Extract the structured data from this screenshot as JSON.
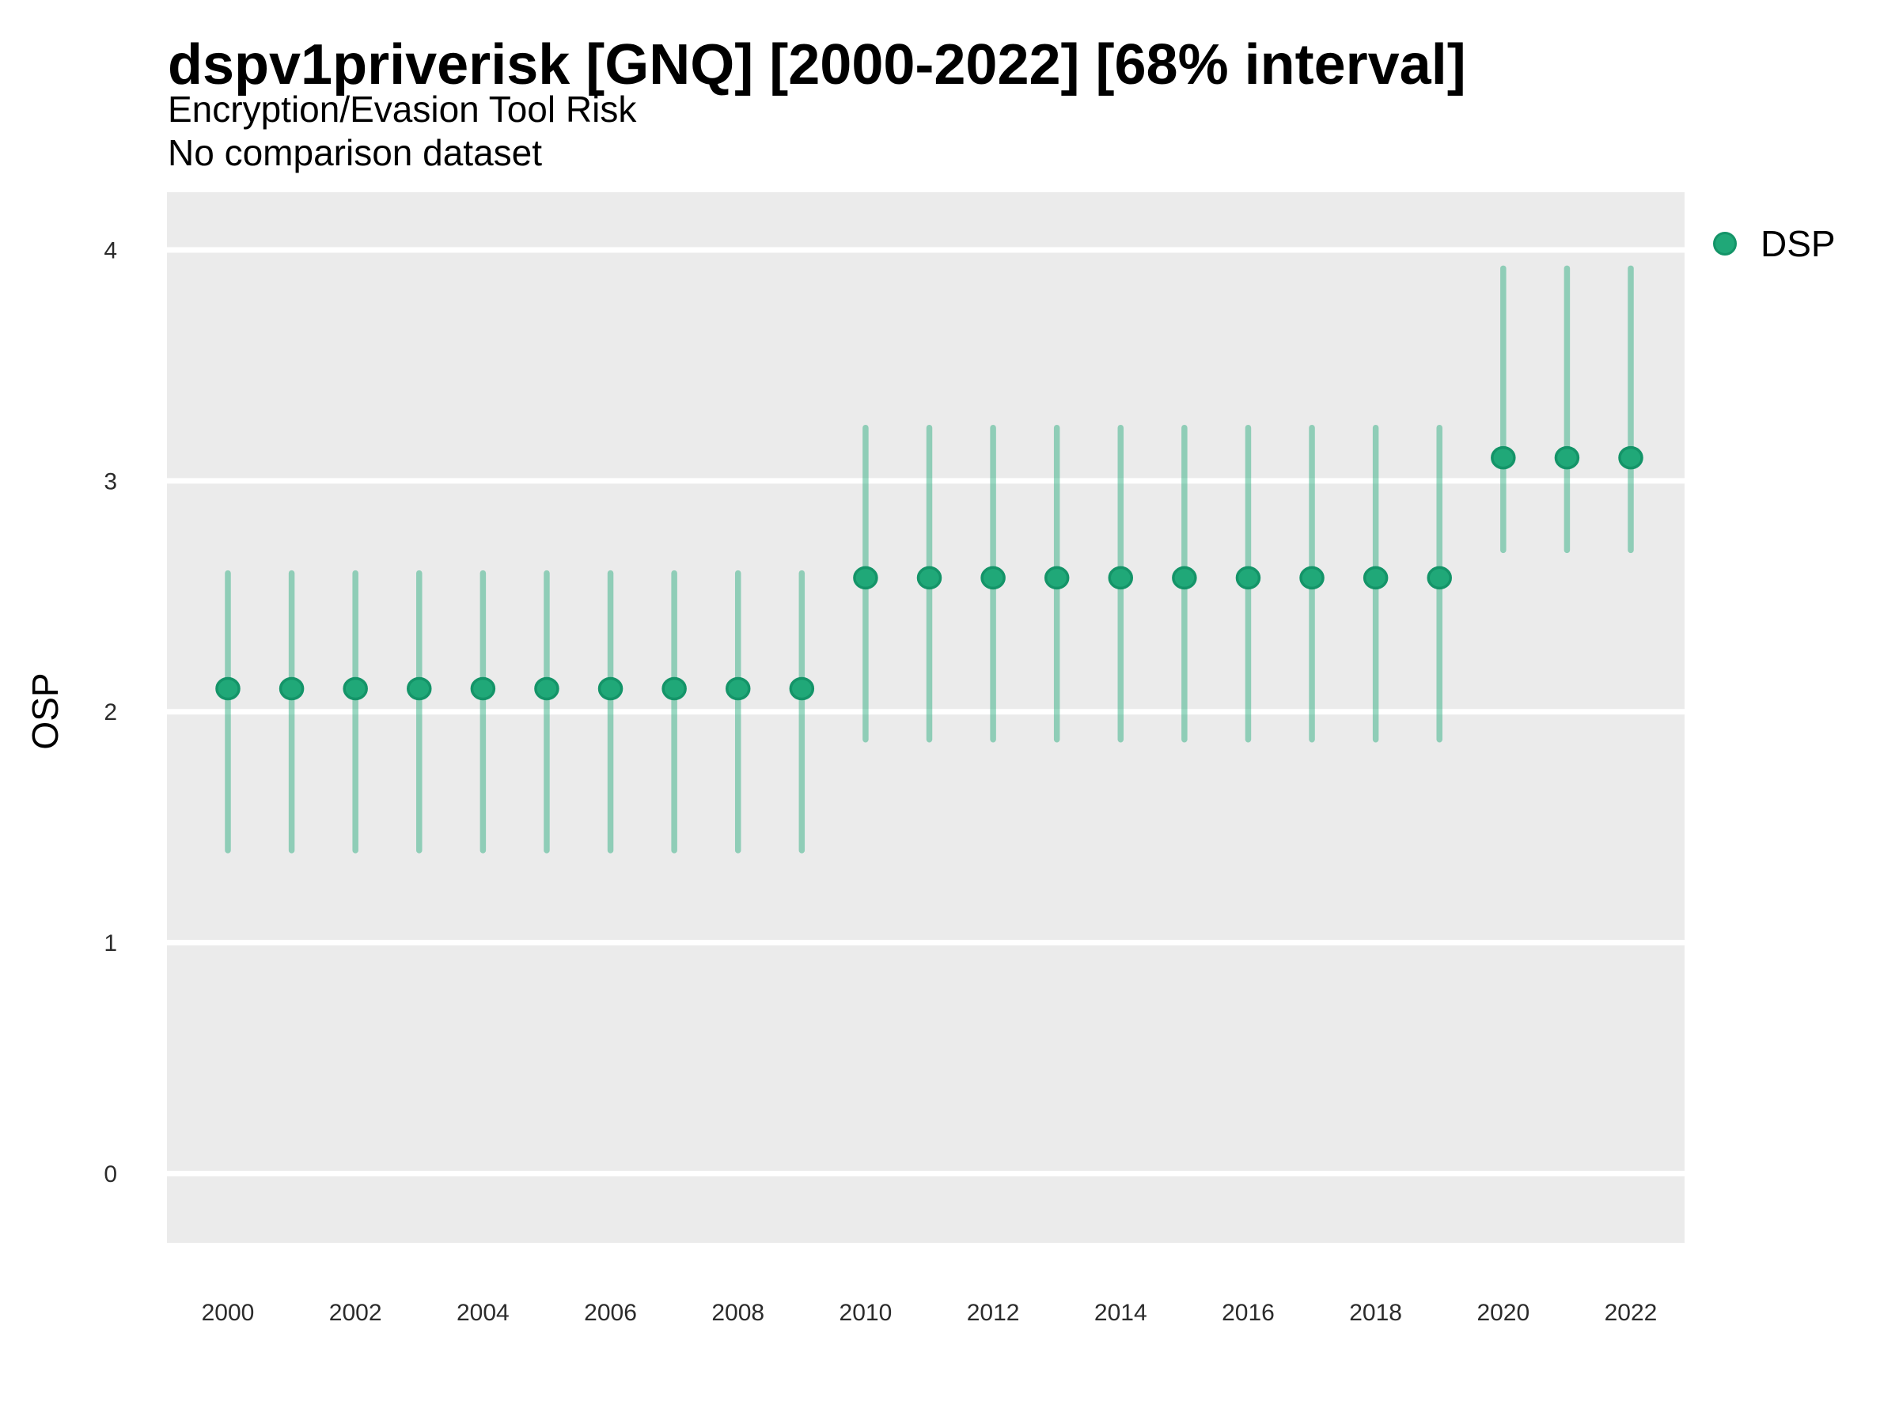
{
  "header": {
    "title": "dspv1priverisk [GNQ] [2000-2022] [68% interval]",
    "subtitle": "Encryption/Evasion Tool Risk",
    "note": "No comparison dataset"
  },
  "legend": {
    "position": "right-top",
    "items": [
      {
        "label": "DSP",
        "color": "#20A878",
        "stroke": "#149468"
      }
    ]
  },
  "chart_data": {
    "type": "pointrange",
    "title": "dspv1priverisk [GNQ] [2000-2022] [68% interval]",
    "xlabel": "",
    "ylabel": "OSP",
    "interval": "68%",
    "grid": "horizontal-only",
    "x": [
      2000,
      2001,
      2002,
      2003,
      2004,
      2005,
      2006,
      2007,
      2008,
      2009,
      2010,
      2011,
      2012,
      2013,
      2014,
      2015,
      2016,
      2017,
      2018,
      2019,
      2020,
      2021,
      2022
    ],
    "series": [
      {
        "name": "DSP",
        "values": [
          2.1,
          2.1,
          2.1,
          2.1,
          2.1,
          2.1,
          2.1,
          2.1,
          2.1,
          2.1,
          2.58,
          2.58,
          2.58,
          2.58,
          2.58,
          2.58,
          2.58,
          2.58,
          2.58,
          2.58,
          3.1,
          3.1,
          3.1
        ],
        "lower": [
          1.4,
          1.4,
          1.4,
          1.4,
          1.4,
          1.4,
          1.4,
          1.4,
          1.4,
          1.4,
          1.88,
          1.88,
          1.88,
          1.88,
          1.88,
          1.88,
          1.88,
          1.88,
          1.88,
          1.88,
          2.7,
          2.7,
          2.7
        ],
        "upper": [
          2.6,
          2.6,
          2.6,
          2.6,
          2.6,
          2.6,
          2.6,
          2.6,
          2.6,
          2.6,
          3.23,
          3.23,
          3.23,
          3.23,
          3.23,
          3.23,
          3.23,
          3.23,
          3.23,
          3.23,
          3.92,
          3.92,
          3.92
        ]
      }
    ],
    "xticks": [
      2000,
      2002,
      2004,
      2006,
      2008,
      2010,
      2012,
      2014,
      2016,
      2018,
      2020,
      2022
    ],
    "yticks": [
      0,
      1,
      2,
      3,
      4
    ],
    "ylim": [
      -0.3,
      4.25
    ],
    "colors": {
      "point": "#20A878",
      "point_stroke": "#149468",
      "range_line": "rgba(30,168,120,0.45)",
      "plot_bg": "#EBEBEB",
      "gridline": "#FFFFFF",
      "tick_label": "#2B2B2B"
    }
  }
}
